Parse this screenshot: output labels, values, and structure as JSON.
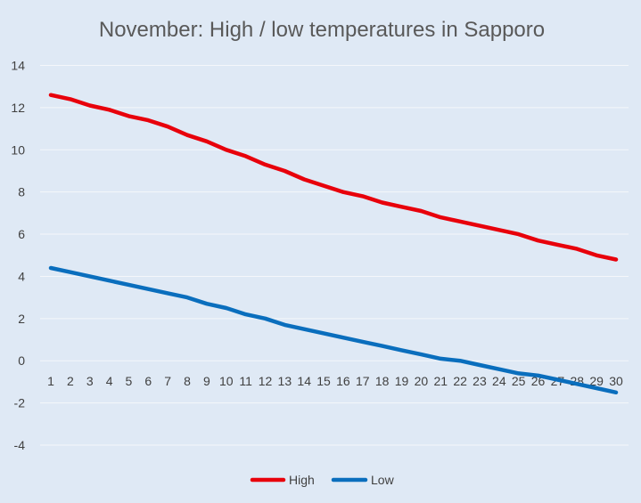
{
  "chart_data": {
    "type": "line",
    "title": "November: High / low temperatures in Sapporo",
    "xlabel": "",
    "ylabel": "",
    "categories": [
      "1",
      "2",
      "3",
      "4",
      "5",
      "6",
      "7",
      "8",
      "9",
      "10",
      "11",
      "12",
      "13",
      "14",
      "15",
      "16",
      "17",
      "18",
      "19",
      "20",
      "21",
      "22",
      "23",
      "24",
      "25",
      "26",
      "27",
      "28",
      "29",
      "30"
    ],
    "ylim": [
      -4,
      14
    ],
    "yticks": [
      "14",
      "12",
      "10",
      "8",
      "6",
      "4",
      "2",
      "0",
      "-2",
      "-4"
    ],
    "grid": true,
    "legend_position": "bottom",
    "series": [
      {
        "name": "High",
        "color": "#e8000b",
        "values": [
          12.6,
          12.4,
          12.1,
          11.9,
          11.6,
          11.4,
          11.1,
          10.7,
          10.4,
          10.0,
          9.7,
          9.3,
          9.0,
          8.6,
          8.3,
          8.0,
          7.8,
          7.5,
          7.3,
          7.1,
          6.8,
          6.6,
          6.4,
          6.2,
          6.0,
          5.7,
          5.5,
          5.3,
          5.0,
          4.8
        ]
      },
      {
        "name": "Low",
        "color": "#0a6ebd",
        "values": [
          4.4,
          4.2,
          4.0,
          3.8,
          3.6,
          3.4,
          3.2,
          3.0,
          2.7,
          2.5,
          2.2,
          2.0,
          1.7,
          1.5,
          1.3,
          1.1,
          0.9,
          0.7,
          0.5,
          0.3,
          0.1,
          0.0,
          -0.2,
          -0.4,
          -0.6,
          -0.7,
          -0.9,
          -1.1,
          -1.3,
          -1.5
        ]
      }
    ]
  }
}
